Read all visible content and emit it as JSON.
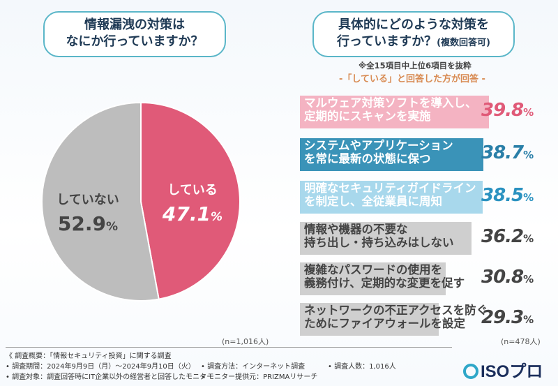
{
  "colors": {
    "accent_pink": "#e05a78",
    "accent_blue": "#2a92c0",
    "gray": "#bdbdbd",
    "frame": "#5ab6c8"
  },
  "question1": {
    "line1": "情報漏洩の対策は",
    "line2": "なにか行っていますか？"
  },
  "question2": {
    "line1": "具体的にどのような対策を",
    "line2": "行っていますか？",
    "suffix": "(複数回答可)"
  },
  "note_top": "※全15項目中上位6項目を抜粋",
  "note_answered": "-「している」と回答した方が回答 -",
  "n_pie": "(n=1,016人)",
  "n_bar": "(n=478人)",
  "chart_data": [
    {
      "type": "pie",
      "title": "情報漏洩の対策はなにか行っていますか？",
      "slices": [
        {
          "label": "している",
          "value": 47.1,
          "display_num": "47.1",
          "unit": "%",
          "color": "#e05a78",
          "text_color": "#ffffff"
        },
        {
          "label": "していない",
          "value": 52.9,
          "display_num": "52.9",
          "unit": "%",
          "color": "#bdbdbd",
          "text_color": "#444444"
        }
      ],
      "n": "n=1,016人"
    },
    {
      "type": "bar",
      "title": "具体的にどのような対策を行っていますか？(複数回答可)",
      "unit": "%",
      "xlim": [
        0,
        40
      ],
      "bars": [
        {
          "line1": "マルウェア対策ソフトを導入し、",
          "line2": "定期的にスキャンを実施",
          "value": 39.8,
          "display_num": "39.8",
          "color": "#f4b3c2",
          "text_color": "#ffffff",
          "pct_color": "#e05a78"
        },
        {
          "line1": "システムやアプリケーション",
          "line2": "を常に最新の状態に保つ",
          "value": 38.7,
          "display_num": "38.7",
          "color": "#3a93b8",
          "text_color": "#ffffff",
          "pct_color": "#2a7fa8"
        },
        {
          "line1": "明確なセキュリティガイドライン",
          "line2": "を制定し、全従業員に周知",
          "value": 38.5,
          "display_num": "38.5",
          "color": "#a8d8ec",
          "text_color": "#ffffff",
          "pct_color": "#2a92c0"
        },
        {
          "line1": "情報や機器の不要な",
          "line2": "持ち出し・持ち込みはしない",
          "value": 36.2,
          "display_num": "36.2",
          "color": "#cfcfcf",
          "text_color": "#444444",
          "pct_color": "#444444"
        },
        {
          "line1": "複雑なパスワードの使用を",
          "line2": "義務付け、定期的な変更を促す",
          "value": 30.8,
          "display_num": "30.8",
          "color": "#cfcfcf",
          "text_color": "#444444",
          "pct_color": "#444444"
        },
        {
          "line1": "ネットワークの不正アクセスを防ぐ",
          "line2": "ためにファイアウォールを設定",
          "value": 29.3,
          "display_num": "29.3",
          "color": "#cfcfcf",
          "text_color": "#444444",
          "pct_color": "#444444"
        }
      ],
      "n": "n=478人"
    }
  ],
  "footer": {
    "summary": "《 調査概要：「情報セキュリティ投資」に関する調査",
    "period": "• 調査期間：2024年9月9日（月）～2024年9月10日（火）",
    "method": "• 調査方法：インターネット調査",
    "count": "• 調査人数：1,016人",
    "target": "• 調査対象：調査回答時にIT企業以外の経営者と回答したモニター",
    "provider": "• モニター提供元：PRIZMAリサーチ"
  },
  "logo": {
    "text": "ISOプロ"
  }
}
